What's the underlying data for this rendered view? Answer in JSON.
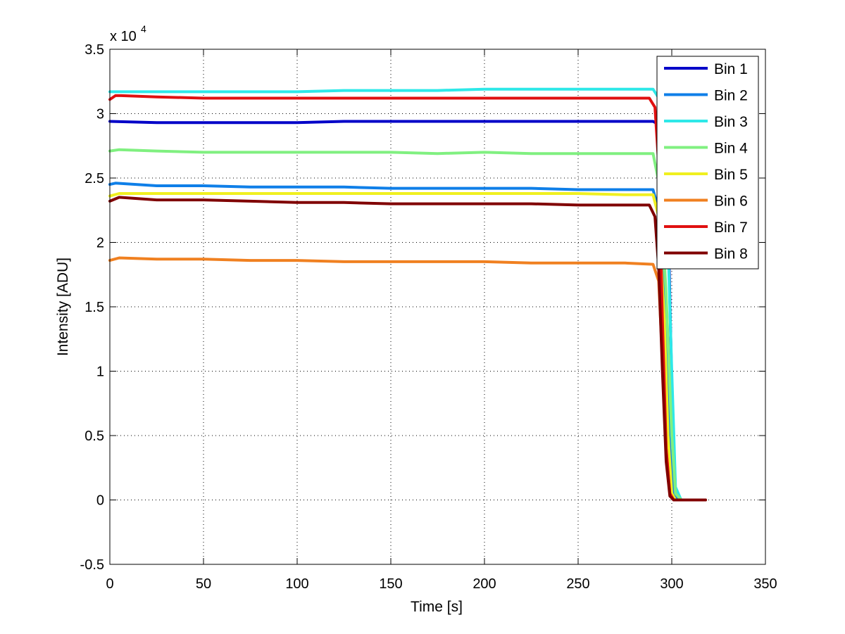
{
  "chart_data": {
    "type": "line",
    "xlabel": "Time [s]",
    "ylabel": "Intensity [ADU]",
    "xlim": [
      0,
      350
    ],
    "ylim": [
      -0.5,
      3.5
    ],
    "y_multiplier_label": "x 10",
    "y_multiplier_exponent": "4",
    "x_ticks": [
      0,
      50,
      100,
      150,
      200,
      250,
      300,
      350
    ],
    "y_ticks": [
      -0.5,
      0,
      0.5,
      1,
      1.5,
      2,
      2.5,
      3,
      3.5
    ],
    "grid": true,
    "legend_position": "top-right",
    "series": [
      {
        "name": "Bin 1",
        "color": "#0000c8",
        "x": [
          0,
          25,
          50,
          75,
          100,
          125,
          150,
          175,
          200,
          225,
          250,
          275,
          290,
          295,
          298,
          300,
          302,
          305,
          318
        ],
        "y": [
          2.94,
          2.93,
          2.93,
          2.93,
          2.93,
          2.94,
          2.94,
          2.94,
          2.94,
          2.94,
          2.94,
          2.94,
          2.94,
          2.9,
          2.2,
          0.9,
          0.05,
          0.0,
          0.0
        ]
      },
      {
        "name": "Bin 2",
        "color": "#0f7fe8",
        "x": [
          0,
          3,
          25,
          50,
          75,
          100,
          125,
          150,
          175,
          200,
          225,
          250,
          275,
          290,
          294,
          297,
          299,
          301,
          304,
          318
        ],
        "y": [
          2.45,
          2.46,
          2.44,
          2.44,
          2.43,
          2.43,
          2.43,
          2.42,
          2.42,
          2.42,
          2.42,
          2.41,
          2.41,
          2.41,
          2.2,
          1.2,
          0.4,
          0.05,
          0.0,
          0.0
        ]
      },
      {
        "name": "Bin 3",
        "color": "#2ee8e8",
        "x": [
          0,
          25,
          50,
          75,
          100,
          125,
          150,
          175,
          200,
          225,
          250,
          275,
          290,
          294,
          297,
          300,
          302,
          305,
          318
        ],
        "y": [
          3.17,
          3.17,
          3.17,
          3.17,
          3.17,
          3.18,
          3.18,
          3.18,
          3.19,
          3.19,
          3.19,
          3.19,
          3.19,
          3.1,
          2.5,
          1.0,
          0.1,
          0.0,
          0.0
        ]
      },
      {
        "name": "Bin 4",
        "color": "#80f080",
        "x": [
          0,
          5,
          25,
          50,
          75,
          100,
          125,
          150,
          175,
          200,
          225,
          250,
          275,
          290,
          294,
          297,
          300,
          302,
          305,
          318
        ],
        "y": [
          2.71,
          2.72,
          2.71,
          2.7,
          2.7,
          2.7,
          2.7,
          2.7,
          2.69,
          2.7,
          2.69,
          2.69,
          2.69,
          2.69,
          2.4,
          1.6,
          0.5,
          0.05,
          0.0,
          0.0
        ]
      },
      {
        "name": "Bin 5",
        "color": "#f0f020",
        "x": [
          0,
          5,
          25,
          50,
          75,
          100,
          125,
          150,
          175,
          200,
          225,
          250,
          275,
          290,
          293,
          296,
          298,
          300,
          302,
          318
        ],
        "y": [
          2.36,
          2.38,
          2.38,
          2.38,
          2.38,
          2.38,
          2.38,
          2.38,
          2.38,
          2.38,
          2.38,
          2.38,
          2.37,
          2.37,
          2.2,
          1.4,
          0.5,
          0.05,
          0.0,
          0.0
        ]
      },
      {
        "name": "Bin 6",
        "color": "#f08020",
        "x": [
          0,
          5,
          25,
          50,
          75,
          100,
          125,
          150,
          175,
          200,
          225,
          250,
          275,
          290,
          293,
          295,
          297,
          299,
          301,
          318
        ],
        "y": [
          1.86,
          1.88,
          1.87,
          1.87,
          1.86,
          1.86,
          1.85,
          1.85,
          1.85,
          1.85,
          1.84,
          1.84,
          1.84,
          1.83,
          1.7,
          1.1,
          0.4,
          0.05,
          0.0,
          0.0
        ]
      },
      {
        "name": "Bin 7",
        "color": "#e01010",
        "x": [
          0,
          3,
          6,
          25,
          50,
          75,
          100,
          125,
          150,
          175,
          200,
          225,
          250,
          275,
          288,
          291,
          293,
          295,
          297,
          299,
          301,
          318
        ],
        "y": [
          3.11,
          3.14,
          3.14,
          3.13,
          3.12,
          3.12,
          3.12,
          3.12,
          3.12,
          3.12,
          3.12,
          3.12,
          3.12,
          3.12,
          3.12,
          3.05,
          2.6,
          1.4,
          0.4,
          0.05,
          0.0,
          0.0
        ]
      },
      {
        "name": "Bin 8",
        "color": "#800000",
        "x": [
          0,
          5,
          25,
          50,
          75,
          100,
          125,
          150,
          175,
          200,
          225,
          250,
          275,
          288,
          291,
          293,
          295,
          297,
          299,
          301,
          318
        ],
        "y": [
          2.32,
          2.35,
          2.33,
          2.33,
          2.32,
          2.31,
          2.31,
          2.3,
          2.3,
          2.3,
          2.3,
          2.29,
          2.29,
          2.29,
          2.2,
          1.8,
          1.0,
          0.3,
          0.03,
          0.0,
          0.0
        ]
      }
    ]
  }
}
